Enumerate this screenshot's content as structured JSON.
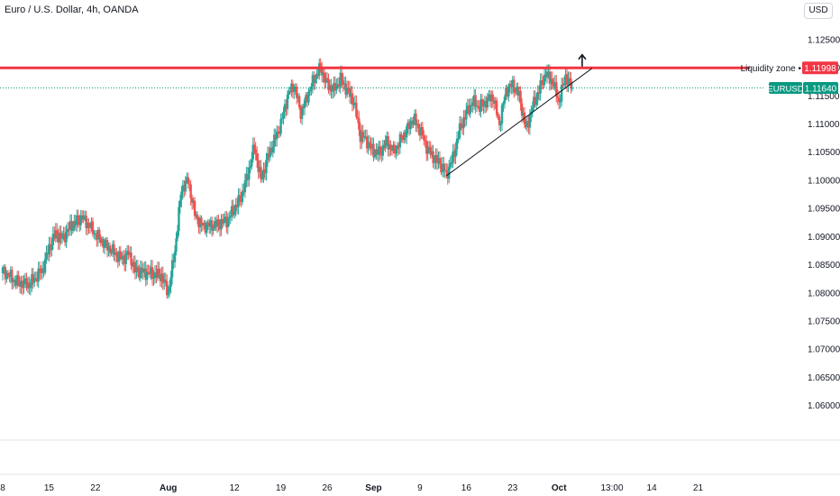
{
  "header": {
    "symbol_title": "Euro / U.S. Dollar, 4h, OANDA",
    "currency_button": "USD"
  },
  "chart_data": {
    "type": "candlestick",
    "title": "Euro / U.S. Dollar, 4h, OANDA",
    "instrument": "EURUSD",
    "y_ticks": [
      "1.12500",
      "1.12000",
      "1.11500",
      "1.11000",
      "1.10500",
      "1.10000",
      "1.09500",
      "1.09000",
      "1.08500",
      "1.08000",
      "1.07500",
      "1.07000",
      "1.06500",
      "1.06000"
    ],
    "x_ticks": [
      "8",
      "15",
      "22",
      "Aug",
      "12",
      "19",
      "26",
      "Sep",
      "9",
      "16",
      "23",
      "Oct",
      "13:00",
      "14",
      "21"
    ],
    "x_tick_index": [
      0,
      7,
      14,
      25,
      35,
      42,
      49,
      56,
      63,
      70,
      77,
      84,
      92,
      98,
      105
    ],
    "index_range": [
      0,
      115
    ],
    "ylim": [
      1.0545,
      1.1285
    ],
    "close_path": [
      [
        0,
        1.084
      ],
      [
        2,
        1.082
      ],
      [
        4,
        1.0815
      ],
      [
        6,
        1.084
      ],
      [
        7,
        1.088
      ],
      [
        8,
        1.0905
      ],
      [
        9,
        1.0895
      ],
      [
        10,
        1.0915
      ],
      [
        12,
        1.0935
      ],
      [
        14,
        1.0905
      ],
      [
        16,
        1.088
      ],
      [
        18,
        1.086
      ],
      [
        19,
        1.087
      ],
      [
        20,
        1.084
      ],
      [
        22,
        1.0835
      ],
      [
        24,
        1.083
      ],
      [
        25,
        1.08
      ],
      [
        26,
        1.0875
      ],
      [
        27,
        1.0985
      ],
      [
        28,
        1.1
      ],
      [
        29,
        1.094
      ],
      [
        30,
        1.092
      ],
      [
        32,
        1.092
      ],
      [
        34,
        1.093
      ],
      [
        36,
        1.097
      ],
      [
        37,
        1.101
      ],
      [
        38,
        1.106
      ],
      [
        39,
        1.1
      ],
      [
        40,
        1.104
      ],
      [
        42,
        1.11
      ],
      [
        43,
        1.115
      ],
      [
        44,
        1.117
      ],
      [
        45,
        1.112
      ],
      [
        46,
        1.115
      ],
      [
        47,
        1.118
      ],
      [
        48,
        1.12
      ],
      [
        49,
        1.117
      ],
      [
        50,
        1.116
      ],
      [
        51,
        1.118
      ],
      [
        52,
        1.116
      ],
      [
        53,
        1.114
      ],
      [
        54,
        1.108
      ],
      [
        55,
        1.107
      ],
      [
        56,
        1.105
      ],
      [
        57,
        1.105
      ],
      [
        58,
        1.107
      ],
      [
        59,
        1.105
      ],
      [
        60,
        1.107
      ],
      [
        61,
        1.109
      ],
      [
        62,
        1.111
      ],
      [
        63,
        1.109
      ],
      [
        64,
        1.106
      ],
      [
        65,
        1.104
      ],
      [
        66,
        1.103
      ],
      [
        67,
        1.101
      ],
      [
        68,
        1.104
      ],
      [
        69,
        1.109
      ],
      [
        70,
        1.112
      ],
      [
        71,
        1.114
      ],
      [
        72,
        1.113
      ],
      [
        73,
        1.114
      ],
      [
        74,
        1.115
      ],
      [
        75,
        1.11
      ],
      [
        76,
        1.116
      ],
      [
        77,
        1.117
      ],
      [
        78,
        1.115
      ],
      [
        79,
        1.109
      ],
      [
        80,
        1.113
      ],
      [
        81,
        1.116
      ],
      [
        82,
        1.119
      ],
      [
        83,
        1.1175
      ],
      [
        84,
        1.114
      ],
      [
        85,
        1.1185
      ],
      [
        86,
        1.1164
      ]
    ],
    "resistance_level": 1.11998,
    "resistance_label": "Liquidity zone",
    "resistance_price_label": "1.11998",
    "last_price": 1.1164,
    "last_price_symbol_label": "EURUSD",
    "last_price_label": "1.11640",
    "trendline": [
      [
        67,
        1.1008
      ],
      [
        89,
        1.1199
      ]
    ],
    "arrow": {
      "index": 87.5,
      "price": 1.1215,
      "direction": "up"
    },
    "colors": {
      "up": "#26a69a",
      "down": "#ef5350",
      "resistance": "#f23645",
      "last_price": "#089981",
      "trendline": "#131722"
    },
    "grid": false
  }
}
